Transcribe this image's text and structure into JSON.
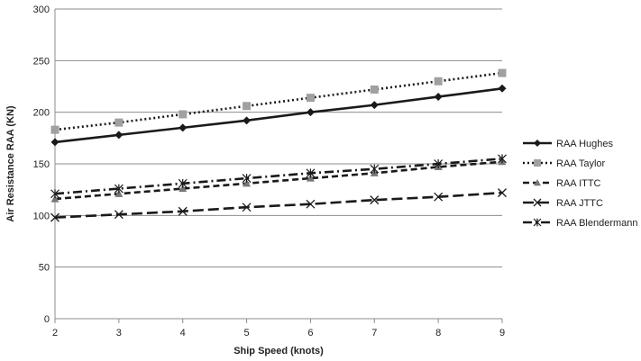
{
  "chart_data": {
    "type": "line",
    "title": "",
    "xlabel": "Ship Speed (knots)",
    "ylabel": "Air Resistance RAA (KN)",
    "x": [
      2,
      3,
      4,
      5,
      6,
      7,
      8,
      9
    ],
    "xlim": [
      2,
      9
    ],
    "ylim": [
      0,
      300
    ],
    "y_ticks": [
      0,
      50,
      100,
      150,
      200,
      250,
      300
    ],
    "grid": "horizontal",
    "legend_position": "right",
    "series": [
      {
        "name": "RAA Hughes",
        "values": [
          171,
          178,
          185,
          192,
          200,
          207,
          215,
          223
        ],
        "color": "#1a1a1a",
        "dash": "solid",
        "marker": "diamond"
      },
      {
        "name": "RAA Taylor",
        "values": [
          183,
          190,
          198,
          206,
          214,
          222,
          230,
          238
        ],
        "color": "#1a1a1a",
        "marker_color": "#a0a0a0",
        "dash": "dotted",
        "marker": "square"
      },
      {
        "name": "RAA ITTC",
        "values": [
          116,
          121,
          126,
          131,
          136,
          141,
          147,
          152
        ],
        "color": "#1a1a1a",
        "marker_color": "#777777",
        "dash": "dashed",
        "marker": "triangle"
      },
      {
        "name": "RAA JTTC",
        "values": [
          98,
          101,
          104,
          108,
          111,
          115,
          118,
          122
        ],
        "color": "#1a1a1a",
        "dash": "longdash",
        "marker": "x"
      },
      {
        "name": "RAA Blendermann",
        "values": [
          121,
          126,
          131,
          136,
          141,
          145,
          150,
          155
        ],
        "color": "#1a1a1a",
        "dash": "dashdot",
        "marker": "asterisk"
      }
    ]
  }
}
